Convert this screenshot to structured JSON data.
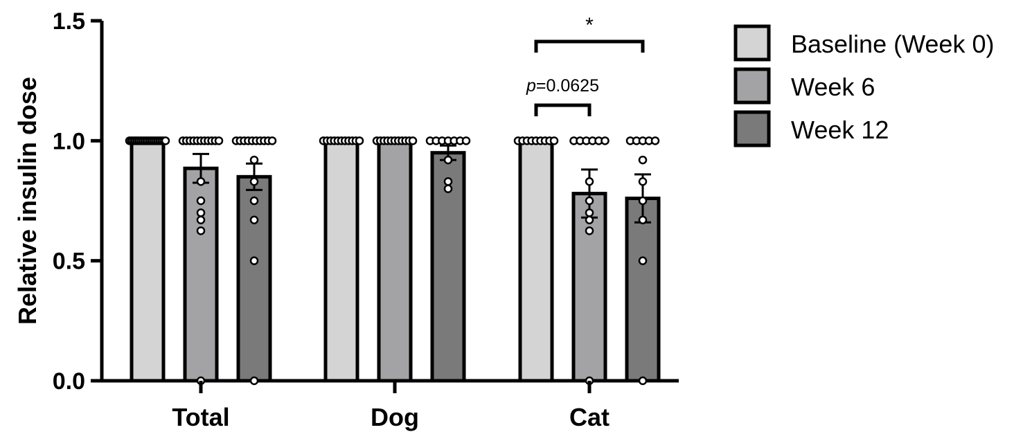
{
  "chart_data": {
    "type": "bar",
    "ylabel": "Relative insulin dose",
    "xlabel": "",
    "ylim": [
      0,
      1.5
    ],
    "yticks": [
      "0.0",
      "0.5",
      "1.0",
      "1.5"
    ],
    "categories": [
      "Total",
      "Dog",
      "Cat"
    ],
    "series": [
      {
        "name": "Baseline (Week 0)",
        "color": "#d4d4d4",
        "values": [
          1.0,
          1.0,
          1.0
        ],
        "errors": [
          0,
          0,
          0
        ],
        "points": [
          [
            1,
            1,
            1,
            1,
            1,
            1,
            1,
            1,
            1,
            1,
            1,
            1,
            1,
            1,
            1,
            1,
            1,
            1,
            1,
            1
          ],
          [
            1,
            1,
            1,
            1,
            1,
            1,
            1,
            1,
            1,
            1,
            1
          ],
          [
            1,
            1,
            1,
            1,
            1,
            1,
            1,
            1,
            1
          ]
        ]
      },
      {
        "name": "Week 6",
        "color": "#a3a3a6",
        "values": [
          0.885,
          1.0,
          0.78
        ],
        "errors": [
          0.06,
          0,
          0.1
        ],
        "points": [
          [
            1,
            1,
            1,
            1,
            1,
            1,
            1,
            1,
            1,
            1,
            1,
            0.83,
            0.75,
            0.7,
            0.67,
            0.625,
            0.0
          ],
          [
            1,
            1,
            1,
            1,
            1,
            1,
            1,
            1,
            1,
            1,
            1
          ],
          [
            1,
            1,
            1,
            1,
            1,
            1,
            0.83,
            0.75,
            0.7,
            0.67,
            0.625,
            0.0
          ]
        ]
      },
      {
        "name": "Week 12",
        "color": "#7a7a7a",
        "values": [
          0.85,
          0.95,
          0.76
        ],
        "errors": [
          0.055,
          0.03,
          0.1
        ],
        "points": [
          [
            1,
            1,
            1,
            1,
            1,
            1,
            1,
            1,
            1,
            1,
            0.92,
            0.83,
            0.75,
            0.67,
            0.5,
            0.0
          ],
          [
            1,
            1,
            1,
            1,
            1,
            1,
            1,
            0.92,
            0.83,
            0.8
          ],
          [
            1,
            1,
            1,
            1,
            1,
            0.92,
            0.83,
            0.75,
            0.67,
            0.5,
            0.0
          ]
        ]
      }
    ],
    "legend_position": "top-right",
    "annotations": [
      {
        "category": "Cat",
        "from": "Baseline (Week 0)",
        "to": "Week 6",
        "label_italic": "p",
        "label_rest": "=0.0625"
      },
      {
        "category": "Cat",
        "from": "Baseline (Week 0)",
        "to": "Week 12",
        "label": "*"
      }
    ]
  }
}
